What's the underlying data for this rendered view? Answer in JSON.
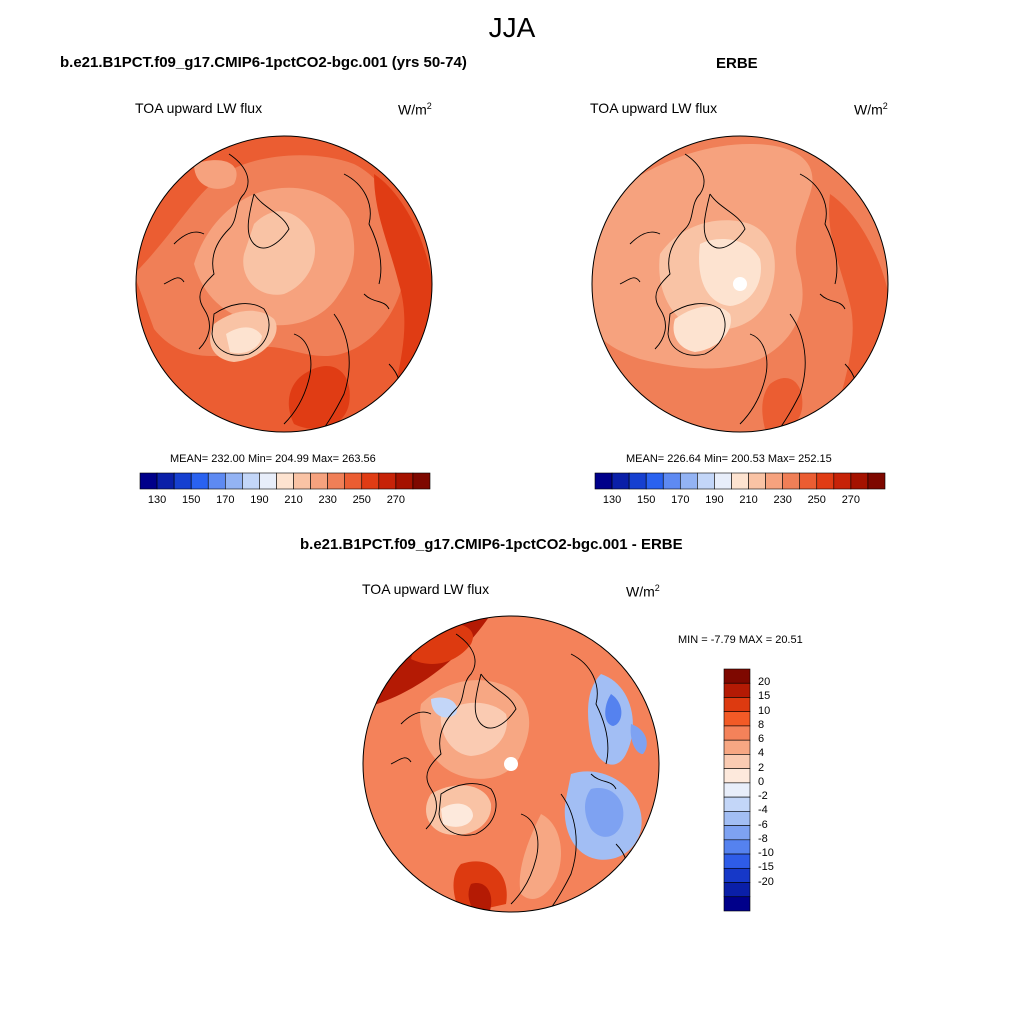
{
  "season": "JJA",
  "panels": {
    "model": {
      "title": "b.e21.B1PCT.f09_g17.CMIP6-1pctCO2-bgc.001 (yrs 50-74)",
      "subtitle": "TOA upward LW flux",
      "units": "W/m",
      "units_exp": "2",
      "stats": "MEAN= 232.00  Min= 204.99  Max= 263.56"
    },
    "obs": {
      "title": "ERBE",
      "subtitle": "TOA upward LW flux",
      "units": "W/m",
      "units_exp": "2",
      "stats": "MEAN= 226.64  Min= 200.53  Max= 252.15"
    },
    "diff": {
      "title": "b.e21.B1PCT.f09_g17.CMIP6-1pctCO2-bgc.001 - ERBE",
      "subtitle": "TOA upward LW flux",
      "units": "W/m",
      "units_exp": "2",
      "stats": "MIN =  -7.79 MAX =  20.51"
    }
  },
  "colorbar_abs": {
    "labels": [
      "130",
      "150",
      "170",
      "190",
      "210",
      "230",
      "250",
      "270"
    ],
    "colors": [
      "#00008a",
      "#0a1fa8",
      "#1640d0",
      "#2a62f0",
      "#5e8af2",
      "#93b3f4",
      "#c3d6f8",
      "#e8eefa",
      "#fde3d0",
      "#f9c3a5",
      "#f6a27e",
      "#f07f57",
      "#eb5d32",
      "#e03c14",
      "#c72308",
      "#a51200",
      "#7e0800"
    ]
  },
  "colorbar_diff": {
    "labels": [
      "20",
      "15",
      "10",
      "8",
      "6",
      "4",
      "2",
      "0",
      "-2",
      "-4",
      "-6",
      "-8",
      "-10",
      "-15",
      "-20"
    ],
    "colors": [
      "#7e0800",
      "#b41a04",
      "#dd3a10",
      "#f25a26",
      "#f4825a",
      "#f7a783",
      "#facbb2",
      "#fde9dc",
      "#e8eefa",
      "#c3d6f8",
      "#a2bef4",
      "#7ea2f2",
      "#5582ef",
      "#2e5ce8",
      "#1638c8",
      "#0a1fa8",
      "#00008a"
    ]
  }
}
